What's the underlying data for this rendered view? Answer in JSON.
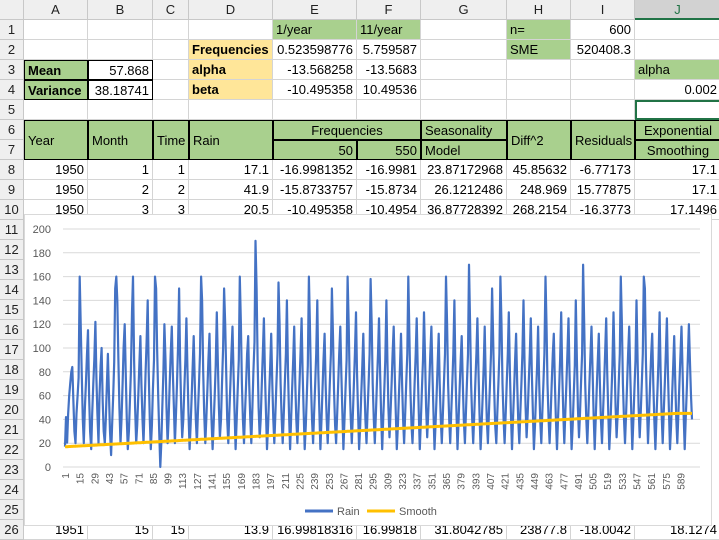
{
  "columns": [
    "A",
    "B",
    "C",
    "D",
    "E",
    "F",
    "G",
    "H",
    "I",
    "J"
  ],
  "rows": [
    "1",
    "2",
    "3",
    "4",
    "5",
    "6",
    "7",
    "8",
    "9",
    "10",
    "11",
    "12",
    "13",
    "14",
    "15",
    "16",
    "17",
    "18",
    "19",
    "20",
    "21",
    "22",
    "23",
    "24",
    "25",
    "26"
  ],
  "selected_column": "J",
  "cells": {
    "E1": "1/year",
    "F1": "11/year",
    "H1": "n=",
    "I1": "600",
    "D2": "Frequencies",
    "E2": "0.523598776",
    "F2": "5.759587",
    "H2": "SME",
    "I2": "520408.3",
    "A3": "Mean",
    "B3": "57.868",
    "D3": "alpha",
    "E3": "-13.568258",
    "F3": "-13.5683",
    "J3": "alpha",
    "A4": "Variance",
    "B4": "38.18741",
    "D4": "beta",
    "E4": "-10.495358",
    "F4": "10.49536",
    "J4": "0.002",
    "E6": "Frequencies",
    "E7a": "50",
    "E7b": "550",
    "A67": "Year",
    "B67": "Month",
    "C67": "Time",
    "D67": "Rain",
    "G6": "Seasonality",
    "G7": "Model",
    "H67": "Diff^2",
    "I67": "Residuals",
    "J6": "Exponential",
    "J7": "Smoothing",
    "r8": [
      "1950",
      "1",
      "1",
      "17.1",
      "-16.9981352",
      "-16.9981",
      "23.87172968",
      "45.85632",
      "-6.77173",
      "17.1"
    ],
    "r9": [
      "1950",
      "2",
      "2",
      "41.9",
      "-15.8733757",
      "-15.8734",
      "26.1212486",
      "248.969",
      "15.77875",
      "17.1"
    ],
    "r10": [
      "1950",
      "3",
      "3",
      "20.5",
      "-10.495358",
      "-10.4954",
      "36.87728392",
      "268.2154",
      "-16.3773",
      "17.1496"
    ],
    "r26": [
      "1951",
      "15",
      "15",
      "13.9",
      "16.99818316",
      "16.99818",
      "31.8042785",
      "23877.8",
      "-18.0042",
      "18.1274"
    ]
  },
  "chart_data": {
    "type": "line",
    "title": "",
    "ylim": [
      0,
      200
    ],
    "yticks": [
      0,
      20,
      40,
      60,
      80,
      100,
      120,
      140,
      160,
      180,
      200
    ],
    "xtick_labels": [
      "1",
      "15",
      "29",
      "43",
      "57",
      "71",
      "85",
      "99",
      "113",
      "127",
      "141",
      "155",
      "169",
      "183",
      "197",
      "211",
      "225",
      "239",
      "253",
      "267",
      "281",
      "295",
      "309",
      "323",
      "337",
      "351",
      "365",
      "379",
      "393",
      "407",
      "421",
      "435",
      "449",
      "463",
      "477",
      "491",
      "505",
      "519",
      "533",
      "547",
      "561",
      "575",
      "589"
    ],
    "n_points": 600,
    "x_start": 1,
    "legend": "bottom",
    "grid": "horizontal",
    "series": [
      {
        "name": "Rain",
        "color": "#4472c4",
        "values": [
          17.1,
          41.9,
          20.5,
          44,
          60,
          70,
          80,
          84,
          55,
          30,
          20,
          45,
          60,
          75,
          160,
          120,
          80,
          40,
          20,
          50,
          70,
          95,
          115,
          60,
          30,
          15,
          45,
          70,
          90,
          122,
          75,
          45,
          20,
          60,
          85,
          100,
          55,
          30,
          20,
          40,
          70,
          95,
          60,
          30,
          10,
          35,
          60,
          88,
          150,
          160,
          140,
          90,
          50,
          20,
          40,
          70,
          100,
          120,
          80,
          40,
          15,
          30,
          55,
          80,
          130,
          160,
          90,
          50,
          20,
          35,
          60,
          85,
          110,
          70,
          40,
          20,
          50,
          80,
          105,
          140,
          80,
          40,
          15,
          35,
          65,
          90,
          160,
          150,
          100,
          60,
          30,
          0,
          20,
          50,
          80,
          120,
          90,
          50,
          20,
          40,
          70,
          95,
          118,
          80,
          50,
          20,
          45,
          70,
          100,
          150,
          90,
          50,
          25,
          40,
          65,
          90,
          125,
          80,
          45,
          15,
          35,
          60,
          85,
          110,
          70,
          40,
          20,
          45,
          70,
          95,
          160,
          140,
          80,
          45,
          20,
          40,
          65,
          90,
          112,
          70,
          40,
          15,
          35,
          60,
          85,
          130,
          90,
          50,
          25,
          40,
          70,
          100,
          150,
          120,
          80,
          40,
          20,
          45,
          70,
          95,
          118,
          80,
          45,
          15,
          40,
          65,
          90,
          160,
          120,
          70,
          40,
          20,
          45,
          70,
          95,
          110,
          70,
          40,
          20,
          50,
          80,
          105,
          190,
          150,
          90,
          50,
          25,
          40,
          70,
          95,
          125,
          80,
          45,
          15,
          35,
          60,
          85,
          112,
          70,
          40,
          20,
          45,
          70,
          95,
          155,
          120,
          70,
          40,
          20,
          45,
          70,
          95,
          140,
          80,
          45,
          15,
          40,
          65,
          90,
          118,
          70,
          40,
          20,
          45,
          70,
          95,
          125,
          80,
          45,
          15,
          35,
          60,
          85,
          160,
          120,
          70,
          40,
          20,
          45,
          70,
          95,
          140,
          80,
          45,
          15,
          40,
          65,
          90,
          112,
          70,
          40,
          20,
          45,
          70,
          95,
          150,
          110,
          65,
          35,
          20,
          45,
          70,
          95,
          118,
          80,
          45,
          15,
          40,
          65,
          90,
          160,
          120,
          70,
          40,
          20,
          45,
          70,
          95,
          130,
          80,
          45,
          15,
          35,
          60,
          85,
          112,
          70,
          40,
          20,
          45,
          70,
          95,
          158,
          120,
          70,
          40,
          20,
          45,
          70,
          95,
          125,
          80,
          45,
          15,
          40,
          65,
          90,
          140,
          90,
          50,
          25,
          45,
          70,
          95,
          118,
          80,
          45,
          15,
          35,
          60,
          85,
          112,
          70,
          40,
          20,
          45,
          70,
          95,
          160,
          110,
          65,
          35,
          20,
          45,
          70,
          95,
          125,
          80,
          45,
          15,
          40,
          65,
          90,
          130,
          90,
          50,
          25,
          45,
          70,
          95,
          118,
          80,
          45,
          15,
          35,
          60,
          85,
          112,
          70,
          40,
          20,
          45,
          70,
          95,
          160,
          120,
          70,
          40,
          20,
          45,
          70,
          95,
          140,
          80,
          45,
          15,
          40,
          65,
          90,
          110,
          70,
          40,
          20,
          45,
          70,
          95,
          170,
          120,
          70,
          40,
          20,
          45,
          70,
          95,
          125,
          80,
          45,
          15,
          35,
          60,
          85,
          118,
          70,
          40,
          20,
          45,
          70,
          95,
          150,
          110,
          65,
          35,
          20,
          45,
          70,
          95,
          160,
          120,
          70,
          40,
          20,
          45,
          70,
          95,
          130,
          80,
          45,
          15,
          40,
          65,
          90,
          112,
          70,
          40,
          20,
          45,
          70,
          95,
          140,
          90,
          50,
          25,
          45,
          70,
          95,
          125,
          80,
          45,
          15,
          35,
          60,
          85,
          118,
          70,
          40,
          20,
          45,
          70,
          95,
          160,
          120,
          70,
          40,
          20,
          45,
          70,
          95,
          112,
          70,
          40,
          15,
          40,
          65,
          90,
          130,
          80,
          45,
          20,
          45,
          70,
          95,
          125,
          80,
          45,
          15,
          35,
          60,
          85,
          140,
          90,
          50,
          25,
          45,
          70,
          95,
          170,
          120,
          70,
          40,
          20,
          45,
          70,
          95,
          118,
          80,
          45,
          15,
          40,
          65,
          90,
          112,
          70,
          40,
          20,
          45,
          70,
          95,
          125,
          80,
          45,
          15,
          35,
          60,
          85,
          130,
          90,
          50,
          25,
          45,
          70,
          95,
          160,
          120,
          70,
          40,
          20,
          45,
          70,
          95,
          118,
          80,
          45,
          15,
          40,
          65,
          90,
          140,
          90,
          50,
          25,
          45,
          70,
          95,
          160,
          150,
          90,
          50,
          20,
          45,
          70,
          95,
          112,
          70,
          40,
          15,
          40,
          65,
          90,
          130,
          80,
          45,
          20,
          45,
          70,
          95,
          125,
          80,
          45,
          15,
          35,
          60,
          85,
          110,
          70,
          40,
          20,
          45,
          70,
          95,
          118,
          80,
          45,
          15,
          40,
          65,
          90,
          120,
          90,
          60,
          40,
          20,
          50,
          70
        ]
      },
      {
        "name": "Smooth",
        "color": "#ffc000",
        "values": []
      }
    ]
  }
}
